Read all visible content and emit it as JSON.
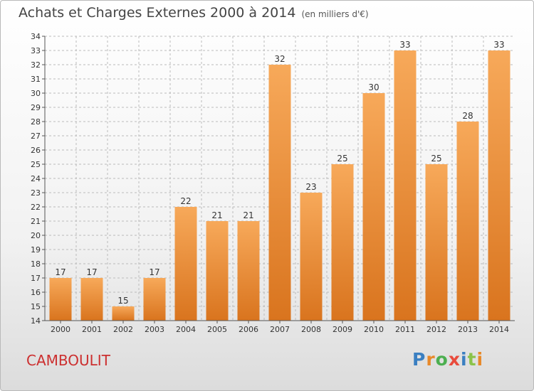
{
  "title": "Achats et Charges Externes 2000 à 2014",
  "subtitle": "(en milliers d'€)",
  "town": "CAMBOULIT",
  "logo": {
    "text": "Proxiti",
    "letters": [
      "P",
      "r",
      "o",
      "x",
      "i",
      "t",
      "i"
    ],
    "colors": [
      "#3a7fc1",
      "#e8892a",
      "#4caf50",
      "#e94b3c",
      "#3a7fc1",
      "#8bc34a",
      "#e8892a"
    ]
  },
  "colors": {
    "bar_top": "#f7a95a",
    "bar_bottom": "#d9741e",
    "axis": "#555555",
    "grid": "#bbbbbb",
    "title": "#444444",
    "town": "#cc2f2f"
  },
  "chart_data": {
    "type": "bar",
    "title": "Achats et Charges Externes 2000 à 2014",
    "subtitle": "(en milliers d'€)",
    "categories": [
      "2000",
      "2001",
      "2002",
      "2003",
      "2004",
      "2005",
      "2006",
      "2007",
      "2008",
      "2009",
      "2010",
      "2011",
      "2012",
      "2013",
      "2014"
    ],
    "values": [
      17,
      17,
      15,
      17,
      22,
      21,
      21,
      32,
      23,
      25,
      30,
      33,
      25,
      28,
      33
    ],
    "ylim": [
      14,
      34
    ],
    "yticks": [
      14,
      15,
      16,
      17,
      18,
      19,
      20,
      21,
      22,
      23,
      24,
      25,
      26,
      27,
      28,
      29,
      30,
      31,
      32,
      33,
      34
    ],
    "grid": true,
    "data_labels": true
  }
}
